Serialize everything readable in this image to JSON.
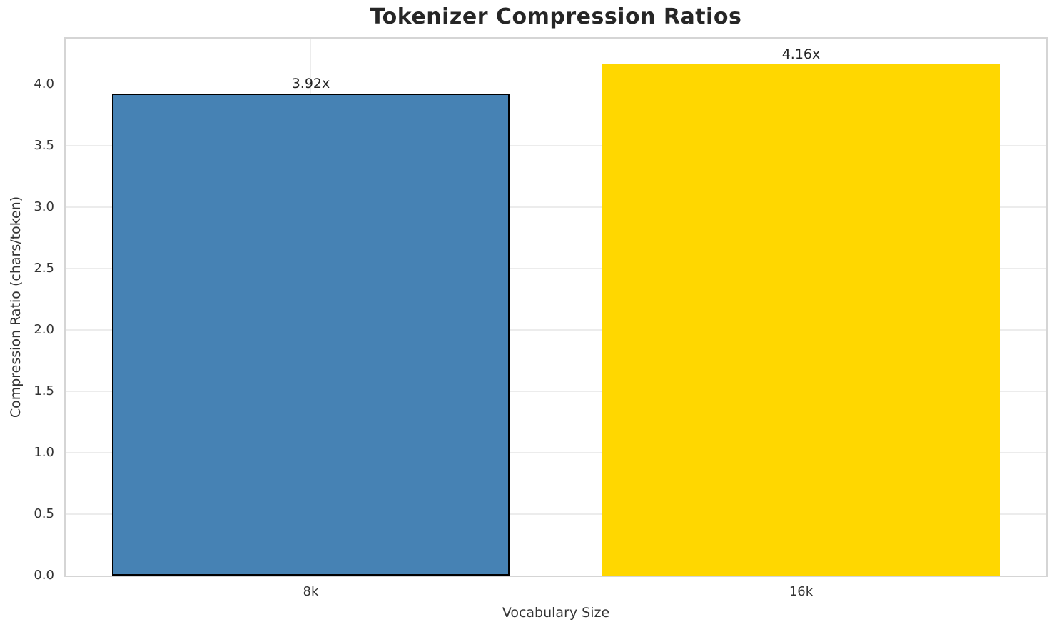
{
  "chart_data": {
    "type": "bar",
    "title": "Tokenizer Compression Ratios",
    "xlabel": "Vocabulary Size",
    "ylabel": "Compression Ratio (chars/token)",
    "categories": [
      "8k",
      "16k"
    ],
    "values": [
      3.92,
      4.16
    ],
    "bar_labels": [
      "3.92x",
      "4.16x"
    ],
    "bar_colors": [
      "#4682B4",
      "#FFD700"
    ],
    "bar_edge_colors": [
      "#000000",
      "transparent"
    ],
    "ylim": [
      0,
      4.37
    ],
    "ytick_labels": [
      "0.0",
      "0.5",
      "1.0",
      "1.5",
      "2.0",
      "2.5",
      "3.0",
      "3.5",
      "4.0"
    ],
    "grid": "on",
    "legend": "none"
  },
  "style_colors": {
    "grid": "#ececec",
    "spine": "#d5d5d5",
    "title_text": "#262626",
    "tick_text": "#333333",
    "background": "#ffffff"
  }
}
